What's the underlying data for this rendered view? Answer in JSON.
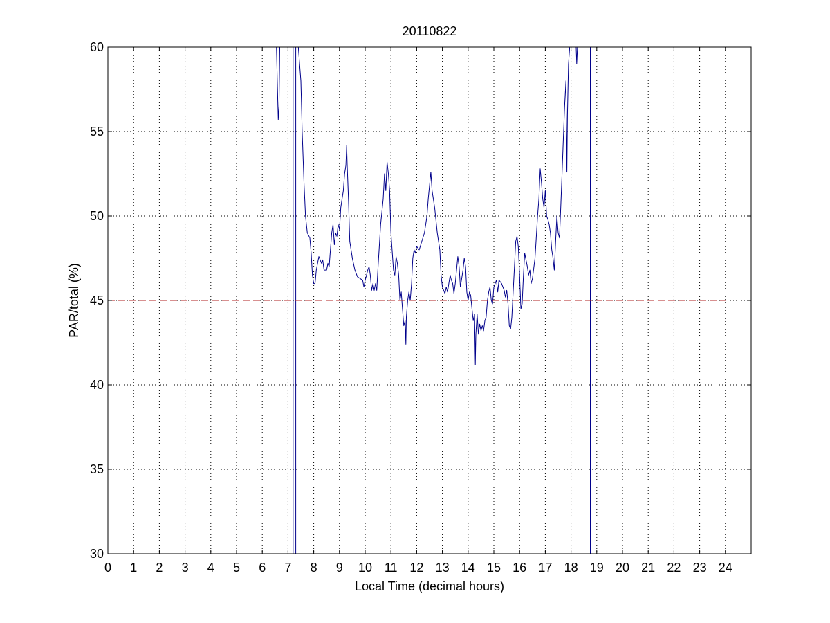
{
  "chart_data": {
    "type": "line",
    "title": "20110822",
    "xlabel": "Local Time (decimal hours)",
    "ylabel": "PAR/total (%)",
    "xlim": [
      0,
      25
    ],
    "ylim": [
      30,
      60
    ],
    "xticks": [
      0,
      1,
      2,
      3,
      4,
      5,
      6,
      7,
      8,
      9,
      10,
      11,
      12,
      13,
      14,
      15,
      16,
      17,
      18,
      19,
      20,
      21,
      22,
      23,
      24
    ],
    "yticks": [
      30,
      35,
      40,
      45,
      50,
      55,
      60
    ],
    "grid": true,
    "grid_style": "dotted",
    "series": [
      {
        "color": "#00008B",
        "style": "solid",
        "segments": [
          [
            [
              6.55,
              60
            ],
            [
              6.6,
              57.0
            ],
            [
              6.62,
              55.7
            ],
            [
              6.65,
              56.5
            ],
            [
              6.68,
              60
            ]
          ],
          [
            [
              7.2,
              60
            ],
            [
              7.2,
              30
            ]
          ],
          [
            [
              7.3,
              30
            ],
            [
              7.3,
              60
            ]
          ],
          [
            [
              7.4,
              60
            ],
            [
              7.5,
              58.0
            ],
            [
              7.55,
              55.0
            ],
            [
              7.62,
              52.0
            ],
            [
              7.68,
              50.0
            ],
            [
              7.75,
              49.0
            ],
            [
              7.85,
              48.7
            ],
            [
              7.9,
              47.8
            ],
            [
              7.95,
              46.5
            ],
            [
              8.0,
              46.0
            ],
            [
              8.05,
              46.0
            ],
            [
              8.1,
              46.8
            ],
            [
              8.2,
              47.6
            ],
            [
              8.3,
              47.2
            ],
            [
              8.35,
              47.4
            ],
            [
              8.4,
              46.8
            ],
            [
              8.5,
              46.8
            ],
            [
              8.55,
              47.2
            ],
            [
              8.6,
              47.0
            ],
            [
              8.7,
              49.0
            ],
            [
              8.75,
              49.5
            ],
            [
              8.8,
              48.3
            ],
            [
              8.85,
              49.0
            ],
            [
              8.9,
              48.8
            ],
            [
              8.95,
              49.5
            ],
            [
              9.0,
              49.2
            ],
            [
              9.05,
              50.5
            ],
            [
              9.1,
              51.0
            ],
            [
              9.15,
              51.5
            ],
            [
              9.2,
              52.5
            ],
            [
              9.25,
              53.0
            ],
            [
              9.28,
              54.2
            ],
            [
              9.3,
              53.0
            ],
            [
              9.35,
              51.0
            ],
            [
              9.4,
              48.5
            ],
            [
              9.5,
              47.5
            ],
            [
              9.6,
              46.8
            ],
            [
              9.7,
              46.4
            ],
            [
              9.8,
              46.3
            ],
            [
              9.9,
              46.2
            ],
            [
              9.95,
              45.8
            ],
            [
              10.0,
              46.2
            ],
            [
              10.1,
              46.8
            ],
            [
              10.15,
              47.0
            ],
            [
              10.2,
              46.5
            ],
            [
              10.25,
              45.6
            ],
            [
              10.3,
              46.0
            ],
            [
              10.35,
              45.6
            ],
            [
              10.4,
              46.0
            ],
            [
              10.45,
              45.6
            ],
            [
              10.5,
              47.0
            ],
            [
              10.6,
              49.5
            ],
            [
              10.7,
              51.0
            ],
            [
              10.75,
              52.5
            ],
            [
              10.8,
              51.5
            ],
            [
              10.85,
              53.2
            ],
            [
              10.9,
              52.5
            ],
            [
              10.95,
              51.5
            ],
            [
              11.0,
              49.0
            ],
            [
              11.1,
              46.8
            ],
            [
              11.15,
              46.5
            ],
            [
              11.2,
              47.6
            ],
            [
              11.25,
              47.2
            ],
            [
              11.3,
              46.5
            ],
            [
              11.35,
              45.0
            ],
            [
              11.4,
              45.5
            ],
            [
              11.45,
              44.5
            ],
            [
              11.5,
              43.5
            ],
            [
              11.55,
              43.8
            ],
            [
              11.58,
              42.4
            ],
            [
              11.6,
              44.0
            ],
            [
              11.65,
              45.0
            ],
            [
              11.7,
              45.5
            ],
            [
              11.75,
              45.0
            ],
            [
              11.8,
              46.0
            ],
            [
              11.85,
              47.5
            ],
            [
              11.9,
              48.0
            ],
            [
              11.95,
              47.8
            ],
            [
              12.0,
              48.2
            ],
            [
              12.1,
              48.0
            ],
            [
              12.2,
              48.5
            ],
            [
              12.3,
              49.0
            ],
            [
              12.4,
              50.0
            ],
            [
              12.45,
              51.0
            ],
            [
              12.5,
              51.8
            ],
            [
              12.55,
              52.6
            ],
            [
              12.6,
              51.5
            ],
            [
              12.7,
              50.5
            ],
            [
              12.8,
              49.0
            ],
            [
              12.9,
              48.0
            ],
            [
              12.95,
              46.5
            ],
            [
              13.0,
              45.8
            ],
            [
              13.1,
              45.4
            ],
            [
              13.15,
              45.8
            ],
            [
              13.2,
              45.5
            ],
            [
              13.25,
              46.0
            ],
            [
              13.3,
              46.5
            ],
            [
              13.35,
              46.2
            ],
            [
              13.4,
              46.0
            ],
            [
              13.45,
              45.4
            ],
            [
              13.5,
              46.0
            ],
            [
              13.6,
              47.6
            ],
            [
              13.65,
              47.0
            ],
            [
              13.7,
              45.8
            ],
            [
              13.75,
              46.3
            ],
            [
              13.8,
              46.8
            ],
            [
              13.85,
              47.5
            ],
            [
              13.9,
              47.0
            ],
            [
              13.95,
              45.5
            ],
            [
              14.0,
              45.0
            ],
            [
              14.05,
              45.5
            ],
            [
              14.1,
              45.3
            ],
            [
              14.15,
              44.5
            ],
            [
              14.2,
              43.8
            ],
            [
              14.25,
              44.2
            ],
            [
              14.28,
              41.2
            ],
            [
              14.3,
              43.0
            ],
            [
              14.35,
              44.2
            ],
            [
              14.4,
              43.0
            ],
            [
              14.45,
              43.6
            ],
            [
              14.5,
              43.2
            ],
            [
              14.55,
              43.5
            ],
            [
              14.6,
              43.2
            ],
            [
              14.65,
              43.8
            ],
            [
              14.7,
              44.0
            ],
            [
              14.75,
              45.0
            ],
            [
              14.8,
              45.5
            ],
            [
              14.85,
              45.8
            ],
            [
              14.9,
              45.0
            ],
            [
              14.95,
              44.8
            ],
            [
              15.0,
              45.8
            ],
            [
              15.05,
              46.0
            ],
            [
              15.1,
              46.2
            ],
            [
              15.15,
              45.5
            ],
            [
              15.2,
              46.2
            ],
            [
              15.3,
              46.0
            ],
            [
              15.4,
              45.6
            ],
            [
              15.45,
              45.2
            ],
            [
              15.5,
              45.6
            ],
            [
              15.55,
              44.8
            ],
            [
              15.6,
              43.5
            ],
            [
              15.65,
              43.3
            ],
            [
              15.7,
              44.0
            ],
            [
              15.75,
              45.5
            ],
            [
              15.8,
              47.0
            ],
            [
              15.85,
              48.5
            ],
            [
              15.9,
              48.8
            ],
            [
              15.95,
              48.2
            ],
            [
              16.0,
              46.5
            ],
            [
              16.05,
              44.5
            ],
            [
              16.1,
              44.8
            ],
            [
              16.15,
              46.5
            ],
            [
              16.2,
              47.8
            ],
            [
              16.3,
              47.0
            ],
            [
              16.35,
              46.5
            ],
            [
              16.4,
              46.8
            ],
            [
              16.45,
              46.0
            ],
            [
              16.5,
              46.3
            ],
            [
              16.6,
              47.5
            ],
            [
              16.7,
              50.0
            ],
            [
              16.75,
              51.0
            ],
            [
              16.8,
              52.8
            ],
            [
              16.85,
              52.0
            ],
            [
              16.9,
              51.0
            ],
            [
              16.95,
              50.5
            ],
            [
              17.0,
              51.5
            ],
            [
              17.05,
              50.0
            ],
            [
              17.1,
              49.8
            ],
            [
              17.15,
              49.5
            ],
            [
              17.2,
              49.0
            ],
            [
              17.25,
              48.0
            ],
            [
              17.3,
              47.5
            ],
            [
              17.35,
              46.8
            ],
            [
              17.4,
              48.5
            ],
            [
              17.45,
              50.0
            ],
            [
              17.5,
              49.0
            ],
            [
              17.55,
              48.7
            ],
            [
              17.6,
              50.5
            ],
            [
              17.65,
              52.5
            ],
            [
              17.7,
              54.5
            ],
            [
              17.75,
              56.5
            ],
            [
              17.8,
              58.0
            ],
            [
              17.82,
              55.0
            ],
            [
              17.84,
              52.6
            ],
            [
              17.86,
              56.0
            ],
            [
              17.9,
              59.0
            ],
            [
              17.95,
              60
            ]
          ],
          [
            [
              18.2,
              60
            ],
            [
              18.22,
              59.0
            ],
            [
              18.25,
              60
            ]
          ],
          [
            [
              18.75,
              60
            ],
            [
              18.75,
              30
            ]
          ]
        ]
      },
      {
        "color": "#B22222",
        "style": "dashed",
        "segments": [
          [
            [
              0,
              45
            ],
            [
              24,
              45
            ]
          ]
        ]
      }
    ]
  }
}
